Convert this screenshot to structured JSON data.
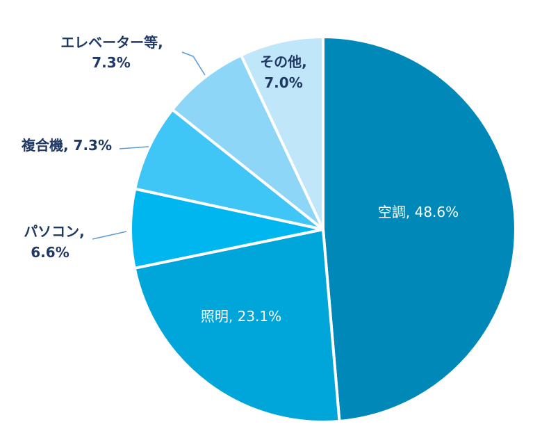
{
  "chart_data": {
    "type": "pie",
    "start": "top",
    "direction": "clockwise",
    "slices": [
      {
        "label": "空調, 48.6%",
        "name": "空調",
        "value": 48.6,
        "color": "#0089b8"
      },
      {
        "label": "照明, 23.1%",
        "name": "照明",
        "value": 23.1,
        "color": "#00a5d9"
      },
      {
        "label_lines": [
          "パソコン,",
          "6.6%"
        ],
        "name": "パソコン",
        "value": 6.6,
        "color": "#00b6ee"
      },
      {
        "label": "複合機, 7.3%",
        "name": "複合機",
        "value": 7.3,
        "color": "#3fc6f6"
      },
      {
        "label_lines": [
          "エレベーター等,",
          "7.3%"
        ],
        "name": "エレベーター等",
        "value": 7.3,
        "color": "#8ed6f7"
      },
      {
        "label_lines": [
          "その他,",
          "7.0%"
        ],
        "name": "その他",
        "value": 7.0,
        "color": "#c0e6f9"
      }
    ],
    "label_color": "#1f3864",
    "inside_label_color": "#ffffff",
    "leader_color": "#5b9bd5"
  }
}
